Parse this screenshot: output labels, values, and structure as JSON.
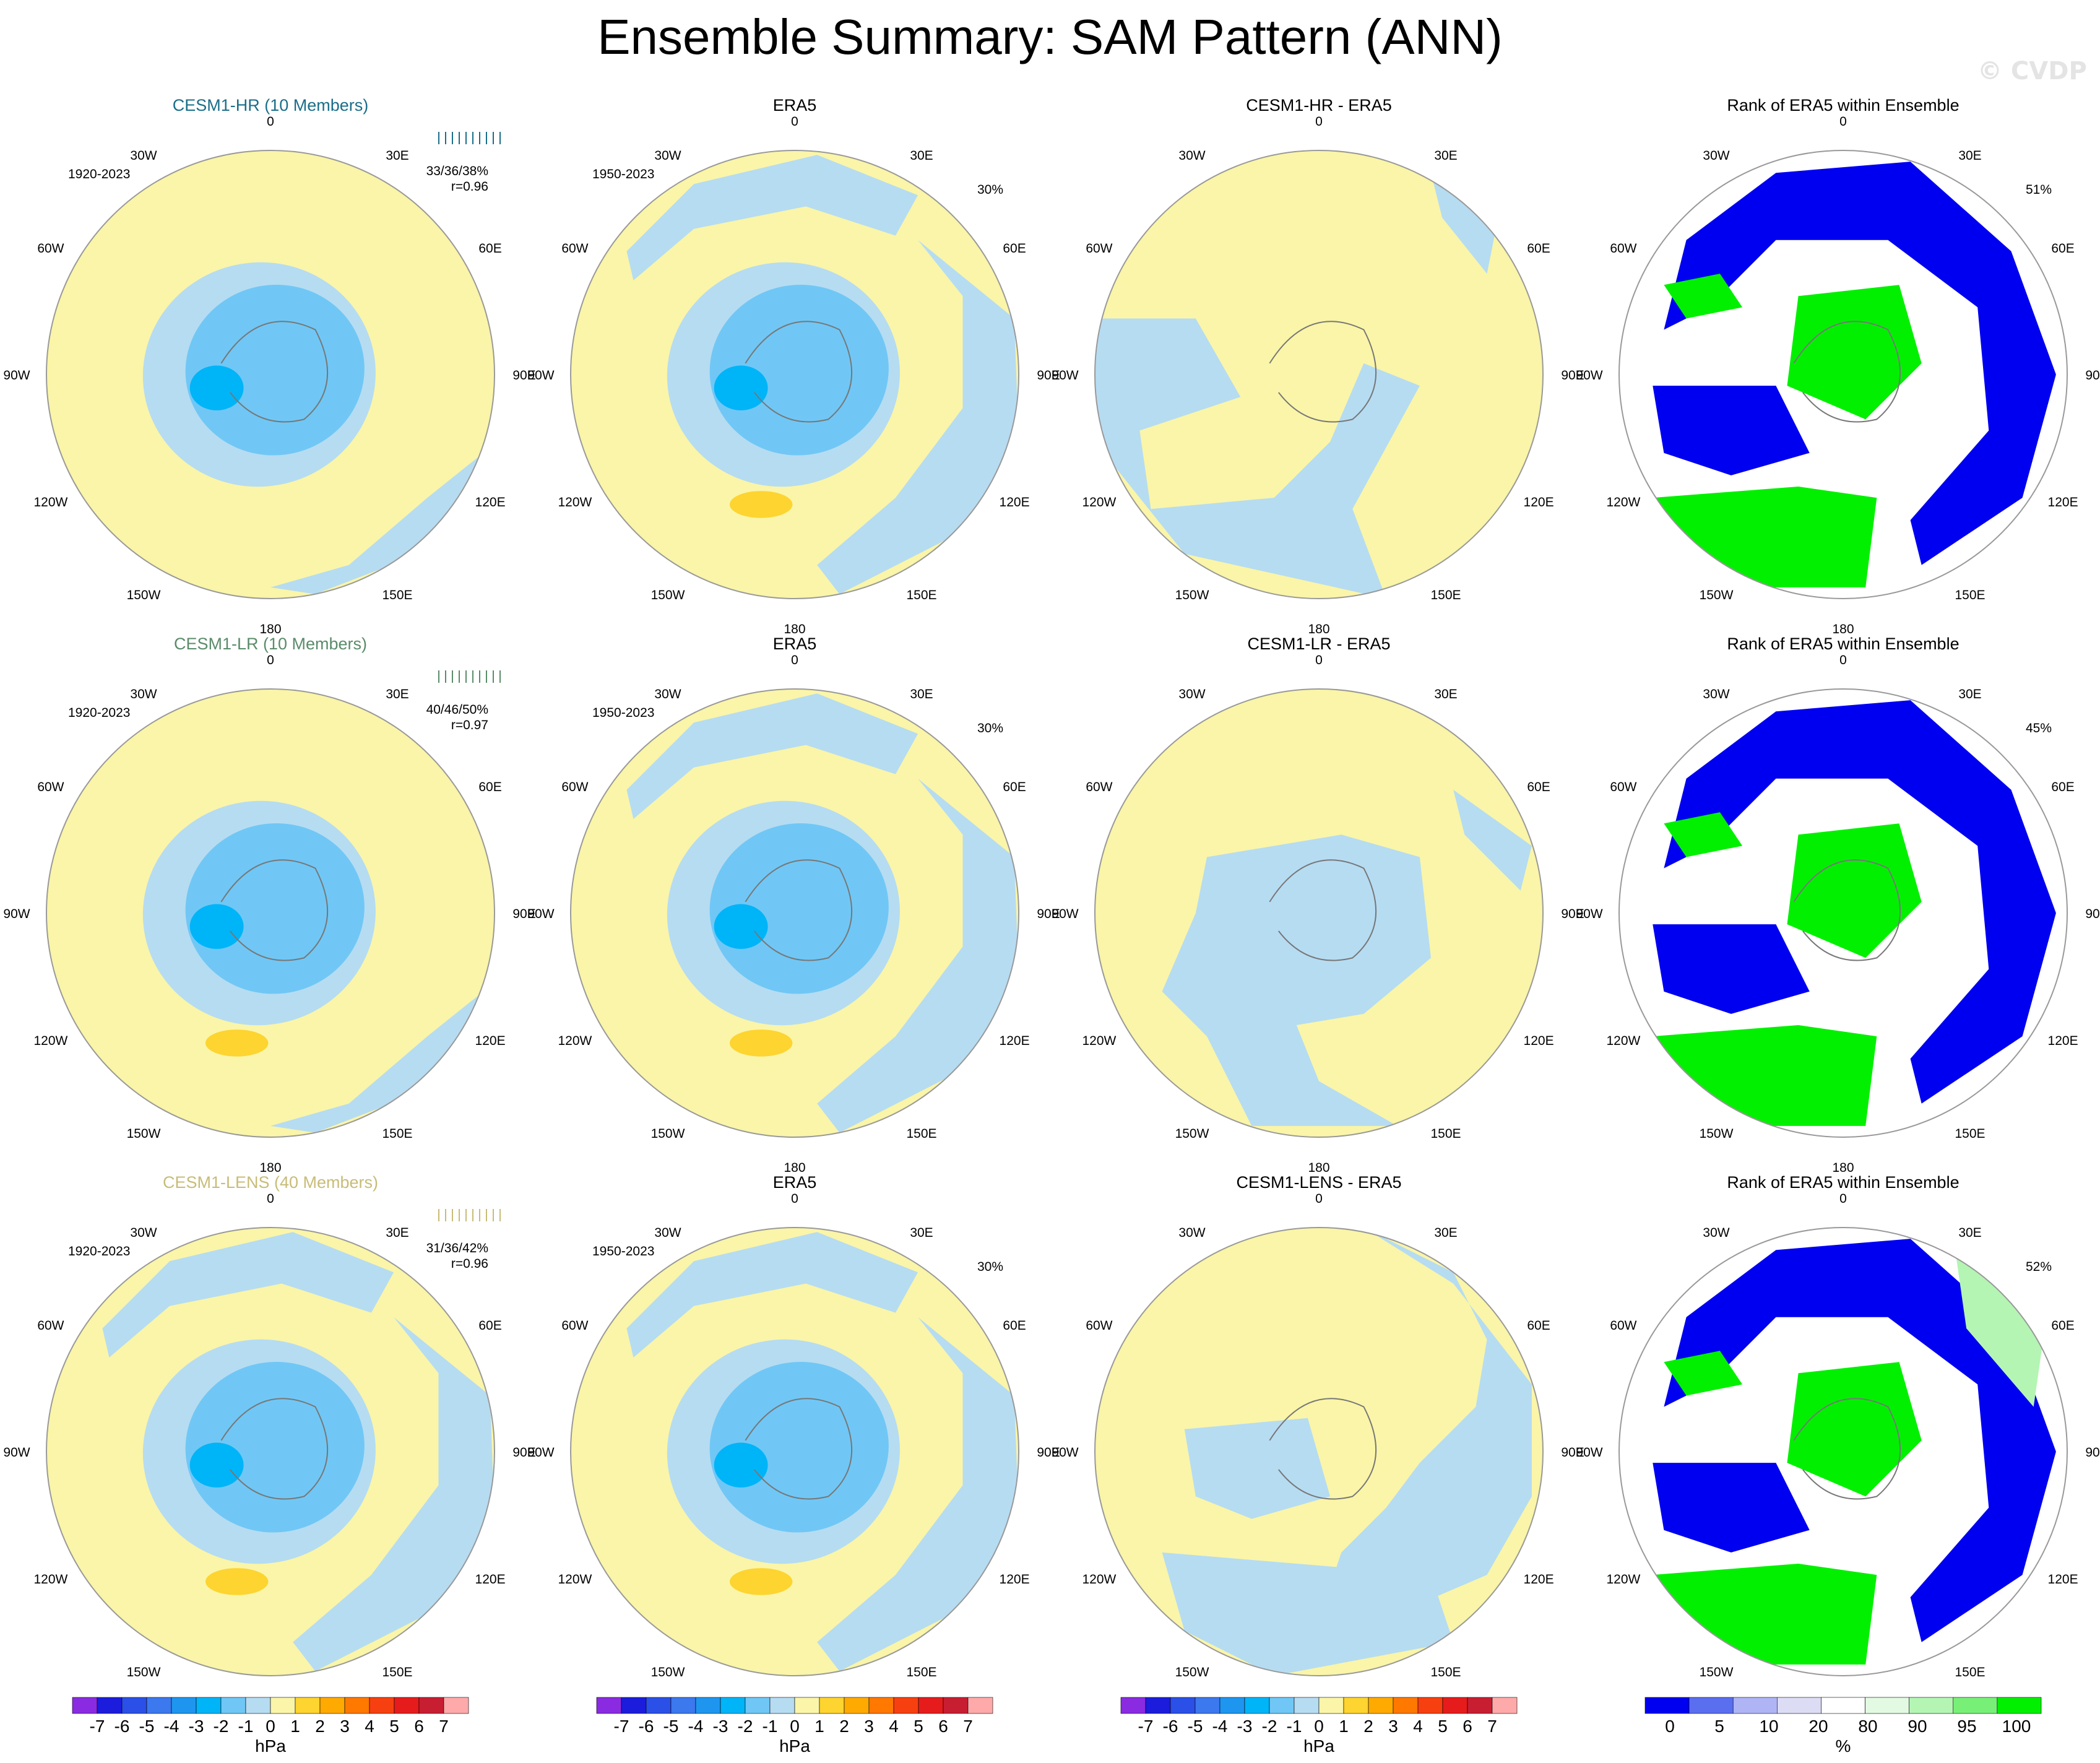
{
  "title": "Ensemble Summary: SAM Pattern (ANN)",
  "watermark": "© CVDP",
  "lon_labels": [
    "0",
    "30E",
    "60E",
    "90E",
    "120E",
    "150E",
    "180",
    "150W",
    "120W",
    "90W",
    "60W",
    "30W"
  ],
  "colorbar": {
    "unit": "hPa",
    "tick_labels": [
      "-7",
      "-6",
      "-5",
      "-4",
      "-3",
      "-2",
      "-1",
      "0",
      "1",
      "2",
      "3",
      "4",
      "5",
      "6",
      "7"
    ],
    "colors": [
      "#8a2be2",
      "#1c1cdc",
      "#2a50e8",
      "#3c78ee",
      "#1e96f0",
      "#00b4f8",
      "#70c7f5",
      "#b6dcf2",
      "#faf5a8",
      "#fdd430",
      "#ffaa00",
      "#ff7800",
      "#f74010",
      "#e61c1c",
      "#c81e32",
      "#ffaaaa"
    ]
  },
  "rank_colorbar": {
    "unit": "%",
    "tick_labels": [
      "0",
      "5",
      "10",
      "20",
      "80",
      "90",
      "95",
      "100"
    ],
    "colors": [
      "#0000f0",
      "#5a6ef0",
      "#afb4f5",
      "#dcdcf5",
      "#ffffff",
      "#e2fae2",
      "#b4f5b4",
      "#78f078",
      "#00f000"
    ]
  },
  "rows": [
    {
      "model": {
        "title": "CESM1-HR (10 Members)",
        "color": "#1a6e8a",
        "years": "1920-2023",
        "stats": "33/36/38%",
        "r": "r=0.96"
      },
      "obs": {
        "title": "ERA5",
        "years": "1950-2023",
        "pct": "30%"
      },
      "diff": {
        "title": "CESM1-HR - ERA5"
      },
      "rank": {
        "title": "Rank of ERA5 within Ensemble",
        "pct": "51%"
      }
    },
    {
      "model": {
        "title": "CESM1-LR (10 Members)",
        "color": "#5a8c6a",
        "years": "1920-2023",
        "stats": "40/46/50%",
        "r": "r=0.97"
      },
      "obs": {
        "title": "ERA5",
        "years": "1950-2023",
        "pct": "30%"
      },
      "diff": {
        "title": "CESM1-LR - ERA5"
      },
      "rank": {
        "title": "Rank of ERA5 within Ensemble",
        "pct": "45%"
      }
    },
    {
      "model": {
        "title": "CESM1-LENS (40 Members)",
        "color": "#c8bc78",
        "years": "1920-2023",
        "stats": "31/36/42%",
        "r": "r=0.96"
      },
      "obs": {
        "title": "ERA5",
        "years": "1950-2023",
        "pct": "30%"
      },
      "diff": {
        "title": "CESM1-LENS - ERA5"
      },
      "rank": {
        "title": "Rank of ERA5 within Ensemble",
        "pct": "52%"
      }
    }
  ]
}
